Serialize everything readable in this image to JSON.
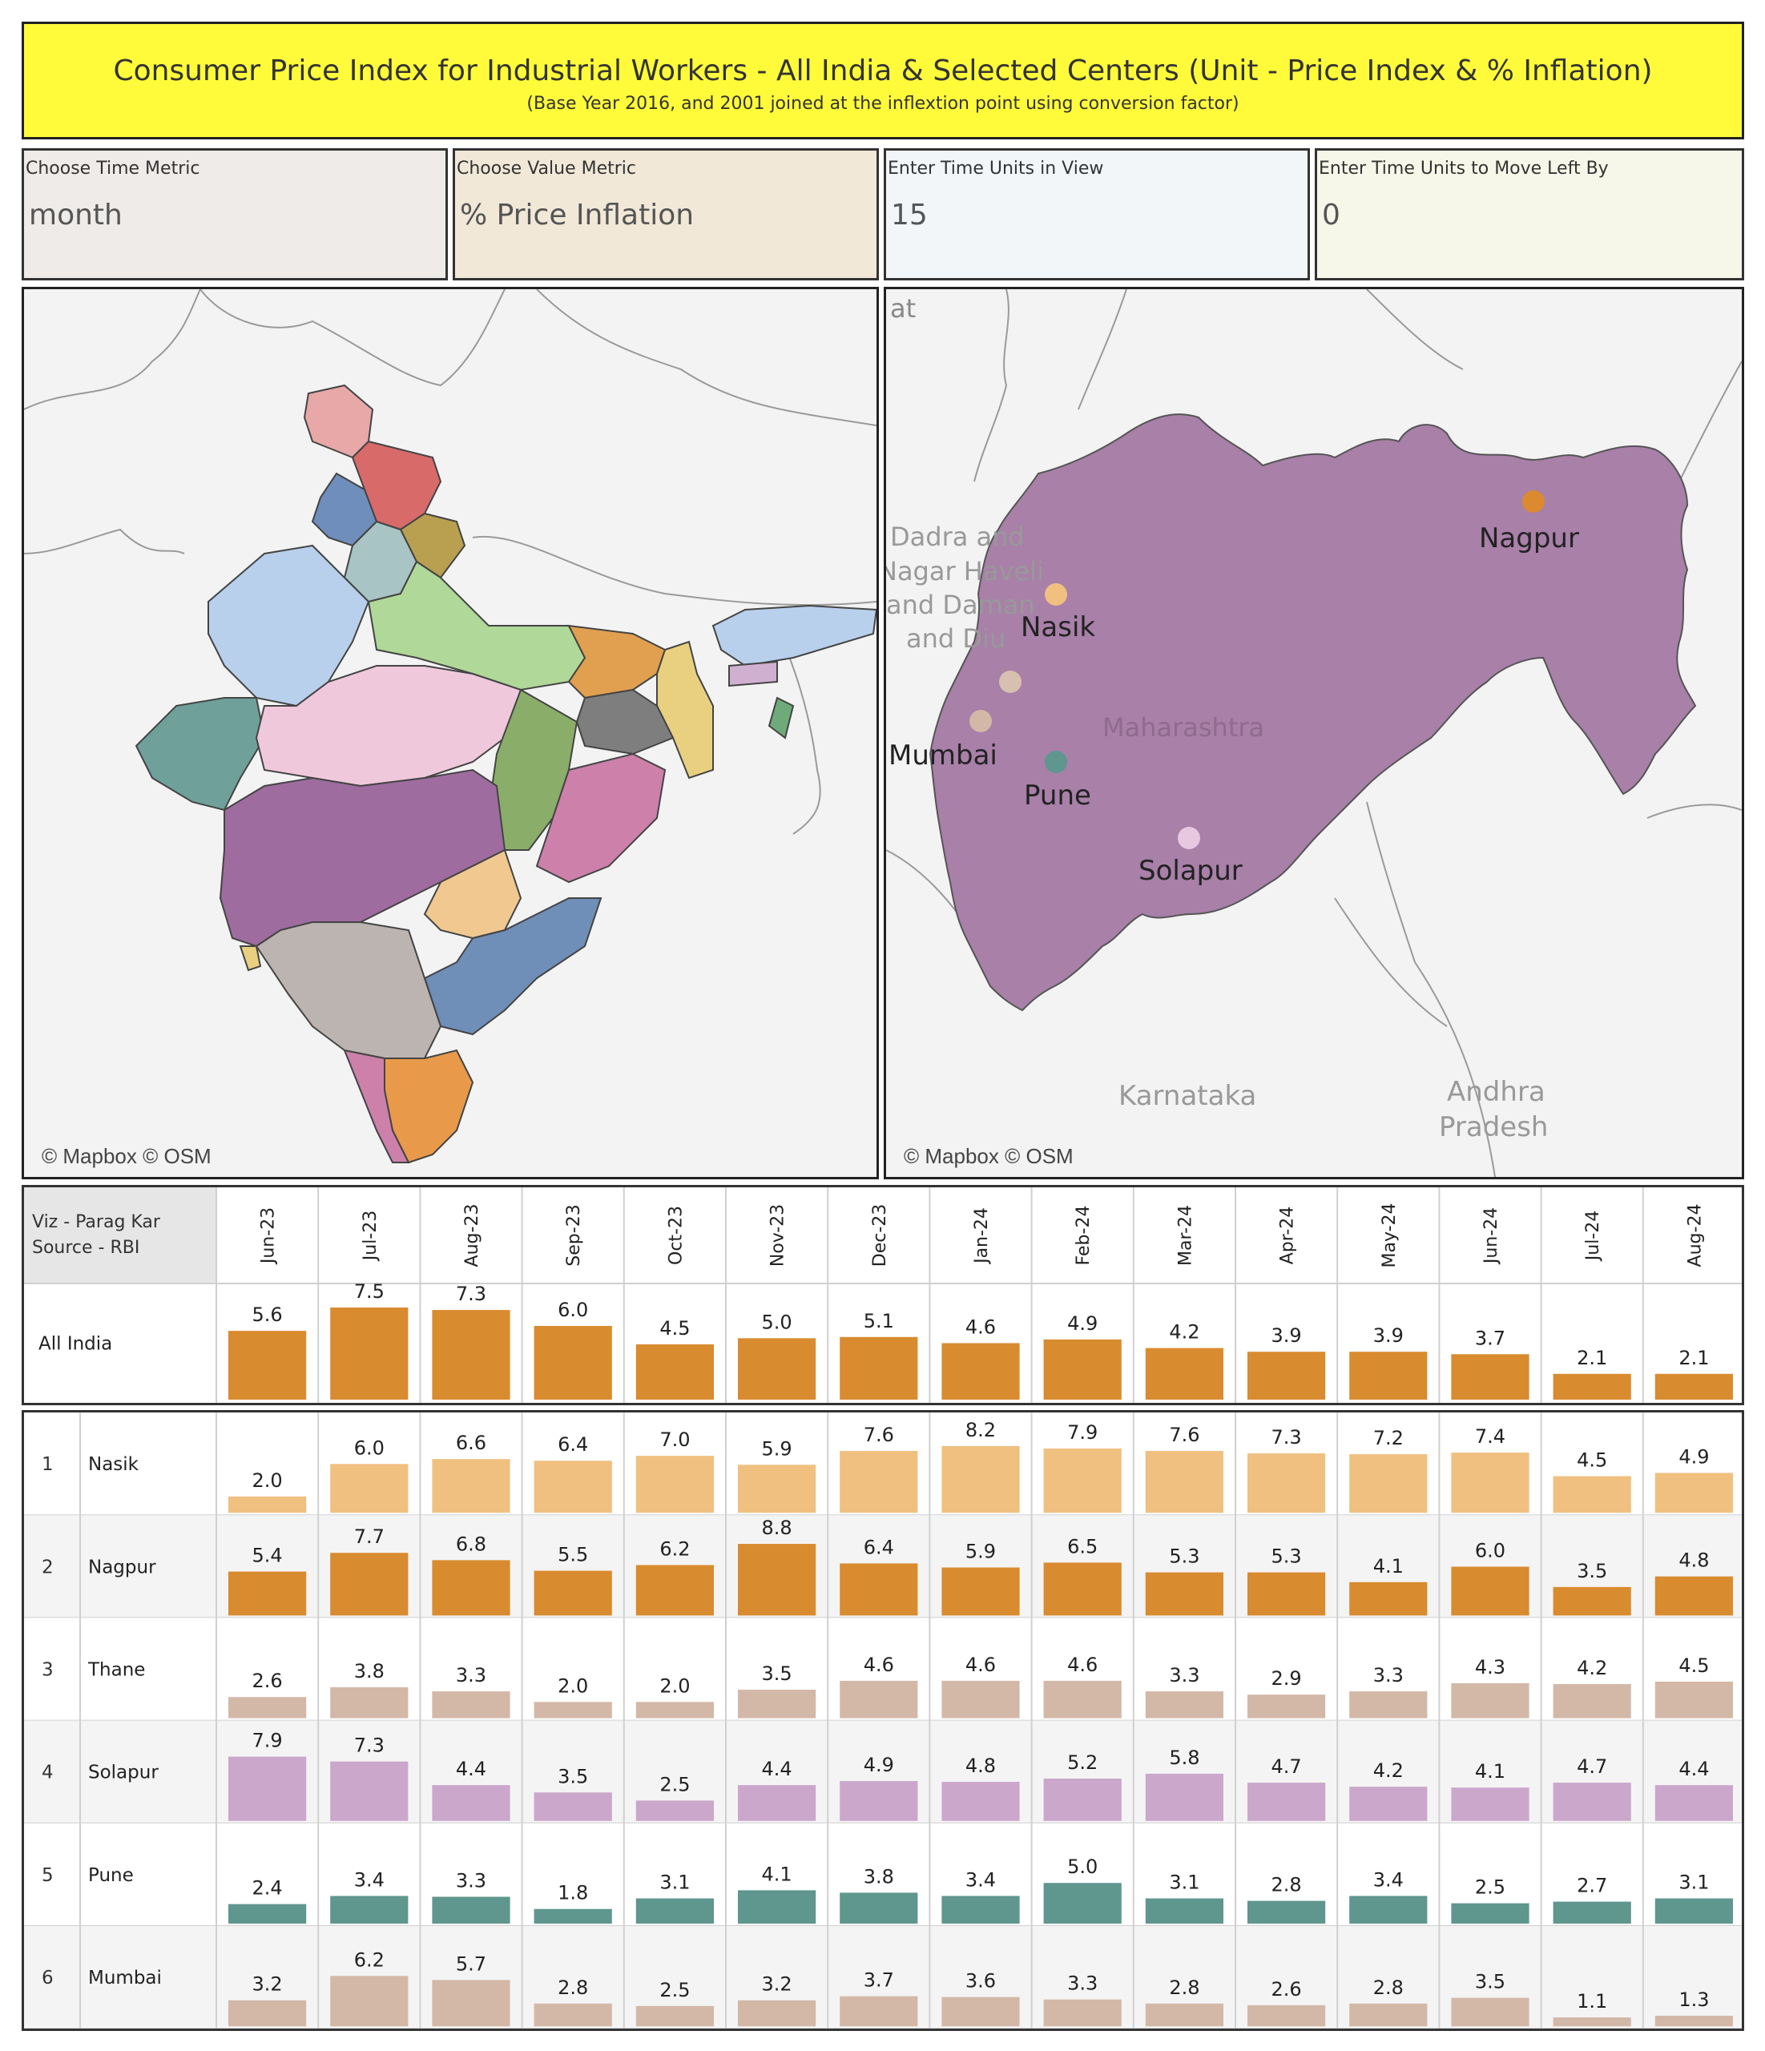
{
  "title": "Consumer Price Index for Industrial Workers - All India  & Selected Centers (Unit - Price Index & % Inflation)",
  "subtitle": "(Base Year 2016, and 2001 joined at the inflextion point using conversion factor)",
  "params": [
    {
      "label": "Choose Time Metric",
      "value": "month",
      "bg": "#eeebe8"
    },
    {
      "label": "Choose Value Metric",
      "value": "% Price Inflation",
      "bg": "#f1e8d8"
    },
    {
      "label": "Enter Time Units in View",
      "value": "15",
      "bg": "#f2f6f9"
    },
    {
      "label": "Enter Time Units to Move Left By",
      "value": "0",
      "bg": "#f7f7e9"
    }
  ],
  "map_left": {
    "credit": "© Mapbox © OSM"
  },
  "map_right": {
    "credit": "© Mapbox © OSM",
    "region_labels": [
      "Maharashtra",
      "Karnataka",
      "Andhra",
      "Pradesh",
      "Dadra and",
      "Nagar Haveli",
      "and Daman",
      "and Diu",
      "at"
    ],
    "cities": [
      {
        "name": "Nagpur",
        "color": "#dc8a30"
      },
      {
        "name": "Nasik",
        "color": "#f0c080"
      },
      {
        "name": "Mumbai",
        "color": "#d3b8a8"
      },
      {
        "name": "Pune",
        "color": "#5f968e"
      },
      {
        "name": "Solapur",
        "color": "#e8c8e0"
      }
    ]
  },
  "table": {
    "credit_line1": "Viz - Parag Kar",
    "credit_line2": "Source - RBI",
    "months": [
      "Jun-23",
      "Jul-23",
      "Aug-23",
      "Sep-23",
      "Oct-23",
      "Nov-23",
      "Dec-23",
      "Jan-24",
      "Feb-24",
      "Mar-24",
      "Apr-24",
      "May-24",
      "Jun-24",
      "Jul-24",
      "Aug-24"
    ]
  },
  "chart_data": {
    "type": "bar",
    "categories": [
      "Jun-23",
      "Jul-23",
      "Aug-23",
      "Sep-23",
      "Oct-23",
      "Nov-23",
      "Dec-23",
      "Jan-24",
      "Feb-24",
      "Mar-24",
      "Apr-24",
      "May-24",
      "Jun-24",
      "Jul-24",
      "Aug-24"
    ],
    "series": [
      {
        "name": "All India",
        "rank": "",
        "color": "#d98b30",
        "values": [
          5.6,
          7.5,
          7.3,
          6.0,
          4.5,
          5.0,
          5.1,
          4.6,
          4.9,
          4.2,
          3.9,
          3.9,
          3.7,
          2.1,
          2.1
        ]
      },
      {
        "name": "Nasik",
        "rank": "1",
        "color": "#f0c080",
        "values": [
          2.0,
          6.0,
          6.6,
          6.4,
          7.0,
          5.9,
          7.6,
          8.2,
          7.9,
          7.6,
          7.3,
          7.2,
          7.4,
          4.5,
          4.9
        ]
      },
      {
        "name": "Nagpur",
        "rank": "2",
        "color": "#d98b30",
        "values": [
          5.4,
          7.7,
          6.8,
          5.5,
          6.2,
          8.8,
          6.4,
          5.9,
          6.5,
          5.3,
          5.3,
          4.1,
          6.0,
          3.5,
          4.8
        ]
      },
      {
        "name": "Thane",
        "rank": "3",
        "color": "#d3b8a8",
        "values": [
          2.6,
          3.8,
          3.3,
          2.0,
          2.0,
          3.5,
          4.6,
          4.6,
          4.6,
          3.3,
          2.9,
          3.3,
          4.3,
          4.2,
          4.5
        ]
      },
      {
        "name": "Solapur",
        "rank": "4",
        "color": "#cba7cc",
        "values": [
          7.9,
          7.3,
          4.4,
          3.5,
          2.5,
          4.4,
          4.9,
          4.8,
          5.2,
          5.8,
          4.7,
          4.2,
          4.1,
          4.7,
          4.4
        ]
      },
      {
        "name": "Pune",
        "rank": "5",
        "color": "#5f968e",
        "values": [
          2.4,
          3.4,
          3.3,
          1.8,
          3.1,
          4.1,
          3.8,
          3.4,
          5.0,
          3.1,
          2.8,
          3.4,
          2.5,
          2.7,
          3.1
        ]
      },
      {
        "name": "Mumbai",
        "rank": "6",
        "color": "#d3b8a8",
        "values": [
          3.2,
          6.2,
          5.7,
          2.8,
          2.5,
          3.2,
          3.7,
          3.6,
          3.3,
          2.8,
          2.6,
          2.8,
          3.5,
          1.1,
          1.3
        ]
      }
    ]
  }
}
